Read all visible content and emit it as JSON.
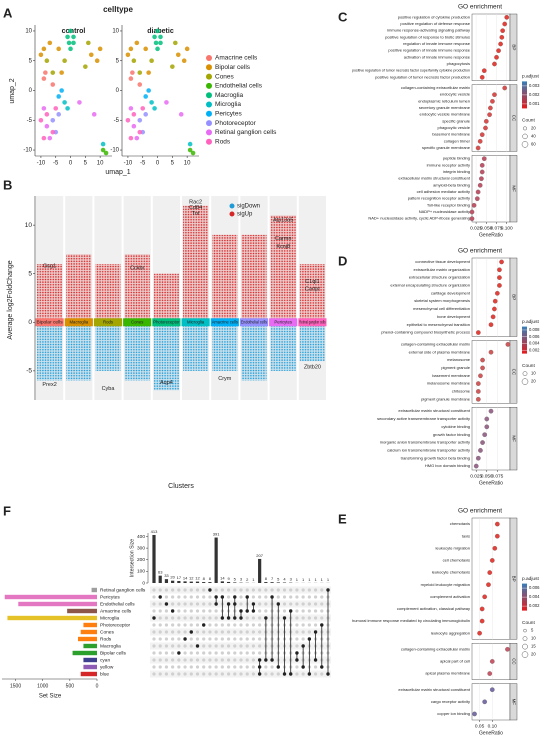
{
  "chart_data": [
    {
      "type": "scatter",
      "label": "A",
      "title": "celltype",
      "facets": [
        "control",
        "diabetic"
      ],
      "xlabel": "umap_1",
      "ylabel": "umap_2",
      "xlim": [
        -12,
        14
      ],
      "ylim": [
        -11,
        11
      ],
      "xticks": [
        -10,
        -5,
        0,
        5,
        10
      ],
      "yticks": [
        -10,
        -5,
        0,
        5,
        10
      ],
      "series": [
        {
          "name": "Amacrine cells",
          "color": "#F8766D",
          "x": [
            -9,
            -8.5,
            -6
          ],
          "y": [
            2,
            3,
            1
          ]
        },
        {
          "name": "Bipolar cells",
          "color": "#D89000",
          "x": [
            -10,
            -9,
            -7,
            -4,
            -3,
            7,
            9,
            10
          ],
          "y": [
            6,
            7,
            8,
            7,
            3,
            6,
            5,
            7
          ]
        },
        {
          "name": "Cones",
          "color": "#A3A500",
          "x": [
            -8,
            -6,
            -2,
            5,
            6
          ],
          "y": [
            5,
            3,
            5,
            4,
            8
          ]
        },
        {
          "name": "Endothelial cells",
          "color": "#39B600",
          "x": [
            11,
            12
          ],
          "y": [
            -10,
            -10.5
          ]
        },
        {
          "name": "Macroglia",
          "color": "#00BF7D",
          "x": [
            -1,
            0,
            1,
            0,
            1,
            -0.5
          ],
          "y": [
            9,
            10,
            8,
            7,
            9,
            8
          ]
        },
        {
          "name": "Microglia",
          "color": "#00BFC4",
          "x": [
            -2,
            -1,
            11
          ],
          "y": [
            -2,
            -3,
            -9
          ]
        },
        {
          "name": "Pericytes",
          "color": "#00B0F6",
          "x": [
            -4,
            -3
          ],
          "y": [
            -1,
            0
          ]
        },
        {
          "name": "Photoreceptor",
          "color": "#9590FF",
          "x": [
            -6,
            -5,
            -4
          ],
          "y": [
            -5,
            -7,
            -4
          ]
        },
        {
          "name": "Retinal ganglion cells",
          "color": "#E76BF3",
          "x": [
            -9,
            -8,
            -7,
            3,
            8
          ],
          "y": [
            -3,
            -6,
            -8,
            -2,
            -4
          ]
        },
        {
          "name": "Rods",
          "color": "#FF62BC",
          "x": [
            -10,
            -8,
            -6,
            -9,
            -5
          ],
          "y": [
            -5,
            -4,
            -7,
            -8,
            -3
          ]
        }
      ]
    },
    {
      "type": "strip",
      "label": "B",
      "xlabel": "Clusters",
      "ylabel": "Average log2FoldChange",
      "categories": [
        "Bipolar cells",
        "Macroglia",
        "Rods",
        "Cones",
        "Photoreceptor",
        "Microglia",
        "Amacrine cells",
        "Endothelial cells",
        "Pericytes",
        "Retinal ganglion cells"
      ],
      "colors": [
        "#F8766D",
        "#D89000",
        "#A3A500",
        "#39B600",
        "#00BF7D",
        "#00BFC4",
        "#00B0F6",
        "#9590FF",
        "#E76BF3",
        "#FF62BC"
      ],
      "ylim": [
        -8,
        13
      ],
      "yticks": [
        -5,
        0,
        5,
        10
      ],
      "series": [
        {
          "name": "sigDown",
          "color": "#1f9bd7",
          "values": [
            -6,
            -6,
            -5,
            -6,
            -7,
            -5,
            -5,
            -6,
            -5,
            -4
          ]
        },
        {
          "name": "sigUp",
          "color": "#d62728",
          "values": [
            6,
            7,
            6,
            7,
            5,
            12,
            9,
            9,
            11,
            6
          ]
        }
      ],
      "annotations": [
        {
          "text": "Rac2",
          "category": 5,
          "value": 12.4
        },
        {
          "text": "Cd84",
          "category": 5,
          "value": 11.8
        },
        {
          "text": "Tnf",
          "category": 5,
          "value": 11.2
        },
        {
          "text": "Atp13a5",
          "category": 8,
          "value": 10.5
        },
        {
          "text": "Carmn",
          "category": 8,
          "value": 8.6
        },
        {
          "text": "Kcnj8",
          "category": 8,
          "value": 7.8
        },
        {
          "text": "Gsg1",
          "category": 0,
          "value": 5.8
        },
        {
          "text": "Cckbr",
          "category": 3,
          "value": 5.6
        },
        {
          "text": "C1ql1",
          "category": 9,
          "value": 4.2
        },
        {
          "text": "Cartpt",
          "category": 9,
          "value": 3.4
        },
        {
          "text": "Prex2",
          "category": 0,
          "value": -6.4
        },
        {
          "text": "Cyba",
          "category": 2,
          "value": -6.8
        },
        {
          "text": "Aqp4",
          "category": 4,
          "value": -6.2
        },
        {
          "text": "Crym",
          "category": 6,
          "value": -5.8
        },
        {
          "text": "Zbtb20",
          "category": 9,
          "value": -4.6
        }
      ]
    },
    {
      "type": "dot",
      "label": "C",
      "title": "GO enrichment",
      "xlabel": "GeneRatio",
      "xlim": [
        0.015,
        0.108
      ],
      "xticks": [
        0.025,
        {
          "value": 0.05,
          "label": "0.050"
        },
        0.075,
        {
          "value": 0.1,
          "label": "0.100"
        }
      ],
      "color_title": "p.adjust",
      "color_scale": [
        "#e41a1c",
        "#377eb8"
      ],
      "color_lim": [
        0.0005,
        0.0035
      ],
      "color_ticks": [
        0.001,
        0.002,
        0.003
      ],
      "size_title": "Count",
      "size_ticks": [
        20,
        40,
        60
      ],
      "facets": [
        {
          "name": "BP",
          "color": "#e5413a",
          "terms": [
            "positive regulation of cytokine production",
            "positive regulation of defense response",
            "immune response-activating signaling pathway",
            "positive regulation of response to biotic stimulus",
            "regulation of innate immune response",
            "positive regulation of innate immune response",
            "activation of innate immune response",
            "phagocytosis",
            "positive regulation of tumor necrosis factor superfamily cytokine production",
            "positive regulation of tumor necrosis factor production"
          ],
          "values": [
            0.1,
            0.095,
            0.09,
            0.088,
            0.085,
            0.08,
            0.075,
            0.07,
            0.045,
            0.04
          ]
        },
        {
          "name": "CC",
          "color": "#dc4f4f",
          "terms": [
            "collagen-containing extracellular matrix",
            "endocytic vesicle",
            "endoplasmic reticulum lumen",
            "secretory granule membrane",
            "endocytic vesicle membrane",
            "specific granule",
            "phagocytic vesicle",
            "basement membrane",
            "collagen trimer",
            "specific granule membrane"
          ],
          "values": [
            0.095,
            0.07,
            0.065,
            0.06,
            0.058,
            0.05,
            0.048,
            0.04,
            0.035,
            0.03
          ]
        },
        {
          "name": "MF",
          "color": "#c0566a",
          "terms": [
            "peptide binding",
            "immune receptor activity",
            "integrin binding",
            "extracellular matrix structural constituent",
            "amyloid-beta binding",
            "cell adhesion mediator activity",
            "pattern recognition receptor activity",
            "Toll-like receptor binding",
            "NADP+ nucleosidase activity",
            "NAD+ nucleosidase activity, cyclic ADP-ribose generating"
          ],
          "values": [
            0.045,
            0.04,
            0.04,
            0.038,
            0.035,
            0.03,
            0.028,
            0.02,
            0.015,
            0.015
          ]
        }
      ]
    },
    {
      "type": "dot",
      "label": "D",
      "title": "GO enrichment",
      "xlabel": "GeneRatio",
      "xlim": [
        0.015,
        0.105
      ],
      "xticks": [
        0.025,
        {
          "value": 0.05,
          "label": "0.050"
        },
        0.075
      ],
      "color_title": "p.adjust",
      "color_scale": [
        "#e41a1c",
        "#377eb8"
      ],
      "color_lim": [
        0.001,
        0.009
      ],
      "color_ticks": [
        0.002,
        0.004,
        0.006,
        0.008
      ],
      "size_title": "Count",
      "size_ticks": [
        10,
        20
      ],
      "facets": [
        {
          "name": "BP",
          "color": "#e5413a",
          "terms": [
            "connective tissue development",
            "extracellular matrix organization",
            "extracellular structure organization",
            "external encapsulating structure organization",
            "cartilage development",
            "skeletal system morphogenesis",
            "mesenchymal cell differentiation",
            "bone development",
            "epithelial to mesenchymal transition",
            "phenol-containing compound biosynthetic process"
          ],
          "values": [
            0.085,
            0.08,
            0.08,
            0.08,
            0.075,
            0.07,
            0.068,
            0.065,
            0.06,
            0.03
          ]
        },
        {
          "name": "CC",
          "color": "#d25a5a",
          "terms": [
            "collagen-containing extracellular matrix",
            "external side of plasma membrane",
            "melanosome",
            "pigment granule",
            "basement membrane",
            "melanosome membrane",
            "chitosome",
            "pigment granule membrane"
          ],
          "values": [
            0.1,
            0.06,
            0.04,
            0.04,
            0.035,
            0.03,
            0.03,
            0.03
          ]
        },
        {
          "name": "MF",
          "color": "#9b6b8e",
          "terms": [
            "extracellular matrix structural constituent",
            "secondary active transmembrane transporter activity",
            "cytokine binding",
            "growth factor binding",
            "inorganic anion transmembrane transporter activity",
            "calcium ion transmembrane transporter activity",
            "transforming growth factor beta binding",
            "HMG box domain binding"
          ],
          "values": [
            0.06,
            0.05,
            0.05,
            0.045,
            0.04,
            0.035,
            0.03,
            0.025
          ]
        }
      ]
    },
    {
      "type": "dot",
      "label": "E",
      "title": "GO enrichment",
      "xlabel": "GeneRatio",
      "xlim": [
        0.02,
        0.17
      ],
      "xticks": [
        0.05,
        {
          "value": 0.1,
          "label": "0.10"
        }
      ],
      "color_title": "p.adjust",
      "color_scale": [
        "#e41a1c",
        "#377eb8"
      ],
      "color_lim": [
        0.001,
        0.007
      ],
      "color_ticks": [
        0.002,
        0.004,
        0.006
      ],
      "size_title": "Count",
      "size_ticks": [
        5,
        10,
        15,
        20
      ],
      "facets": [
        {
          "name": "BP",
          "color": "#e5413a",
          "terms": [
            "chemotaxis",
            "taxis",
            "leukocyte migration",
            "cell chemotaxis",
            "leukocyte chemotaxis",
            "myeloid leukocyte migration",
            "complement activation",
            "complement activation, classical pathway",
            "humoral immune response mediated by circulating immunoglobulin",
            "leukocyte aggregation"
          ],
          "values": [
            0.12,
            0.12,
            0.11,
            0.1,
            0.09,
            0.085,
            0.07,
            0.06,
            0.06,
            0.05
          ]
        },
        {
          "name": "CC",
          "color": "#c85a6a",
          "terms": [
            "collagen-containing extracellular matrix",
            "apical part of cell",
            "apical plasma membrane"
          ],
          "values": [
            0.16,
            0.1,
            0.09
          ]
        },
        {
          "name": "MF",
          "color": "#7a6fa8",
          "terms": [
            "extracellular matrix structural constituent",
            "cargo receptor activity",
            "copper ion binding"
          ],
          "values": [
            0.1,
            0.07,
            0.03
          ]
        }
      ]
    },
    {
      "type": "upset",
      "label": "F",
      "ylabel": "Intersection Size",
      "xlabel": "Set Size",
      "values": [
        413,
        63,
        33,
        20,
        17,
        14,
        12,
        12,
        8,
        8,
        391,
        14,
        9,
        5,
        3,
        2,
        1,
        207,
        8,
        7,
        5,
        4,
        3,
        1,
        1,
        1,
        1,
        1,
        1
      ],
      "ylim": [
        0,
        430
      ],
      "yticks": [
        0,
        100,
        200,
        300,
        400
      ],
      "sets": [
        "Retinal ganglion cells",
        "Pericytes",
        "Endothelial cells",
        "Amacrine cells",
        "Microglia",
        "Photoreceptor",
        "Cones",
        "Rods",
        "Macroglia",
        "Bipolar cells",
        "cyan",
        "yellow",
        "blue"
      ],
      "set_sizes": [
        100,
        1700,
        1450,
        550,
        1650,
        250,
        300,
        350,
        250,
        450,
        250,
        250,
        300
      ],
      "set_colors": [
        "#9e9e9e",
        "#e377c2",
        "#e377c2",
        "#8c564b",
        "#e6c229",
        "#ff7f0e",
        "#ff7f0e",
        "#ff7f0e",
        "#2ca02c",
        "#2ca02c",
        "#3f3f8f",
        "#8e5bb5",
        "#d62728"
      ],
      "xlim": [
        0,
        1750
      ],
      "xticks": [
        0,
        500,
        1000,
        1500
      ],
      "membership": [
        [
          4
        ],
        [
          1
        ],
        [
          2
        ],
        [
          3
        ],
        [
          9
        ],
        [
          7
        ],
        [
          6
        ],
        [
          8
        ],
        [
          5
        ],
        [
          0
        ],
        [
          1,
          2
        ],
        [
          1,
          4
        ],
        [
          2,
          4
        ],
        [
          1,
          2,
          4
        ],
        [
          3,
          4
        ],
        [
          1,
          3
        ],
        [
          2,
          3
        ],
        [
          10,
          11,
          12
        ],
        [
          4,
          10
        ],
        [
          1,
          10
        ],
        [
          2,
          11
        ],
        [
          4,
          12
        ],
        [
          3,
          12
        ],
        [
          9,
          10
        ],
        [
          8,
          11
        ],
        [
          7,
          12
        ],
        [
          6,
          10
        ],
        [
          5,
          11
        ],
        [
          0,
          12
        ]
      ]
    }
  ]
}
